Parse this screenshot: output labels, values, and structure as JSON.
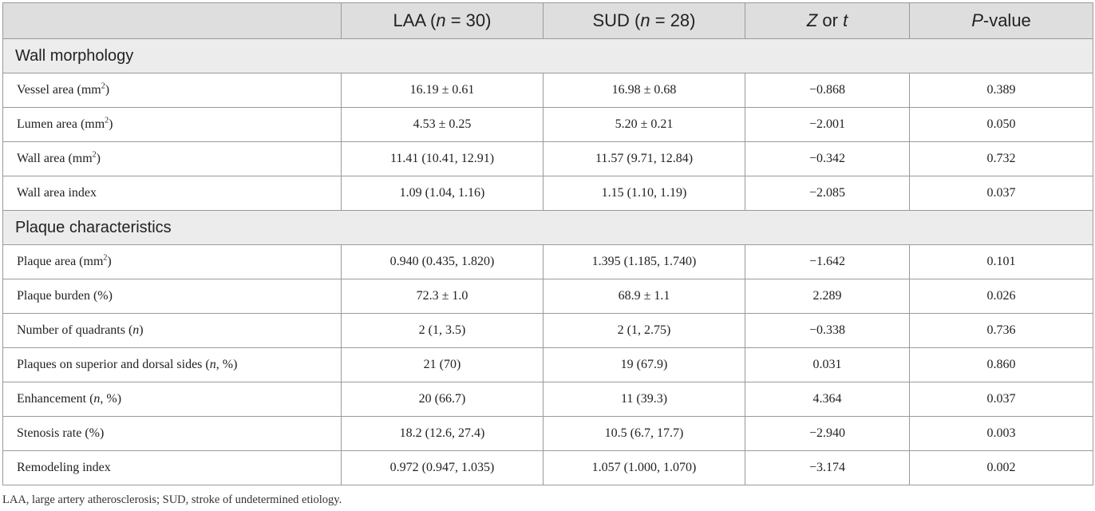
{
  "header": {
    "col1": "",
    "col2_pre": "LAA (",
    "col2_n": "n",
    "col2_post": " = 30)",
    "col3_pre": "SUD (",
    "col3_n": "n",
    "col3_post": " = 28)",
    "col4_z": "Z",
    "col4_or": " or ",
    "col4_t": "t",
    "col5_p": "P",
    "col5_rest": "-value"
  },
  "sections": [
    {
      "title": "Wall morphology",
      "rows": [
        {
          "label": "Vessel area (mm",
          "sup": "2",
          "suffix": ")",
          "laa": "16.19 ± 0.61",
          "sud": "16.98 ± 0.68",
          "z": "−0.868",
          "p": "0.389"
        },
        {
          "label": "Lumen area (mm",
          "sup": "2",
          "suffix": ")",
          "laa": "4.53 ± 0.25",
          "sud": "5.20 ± 0.21",
          "z": "−2.001",
          "p": "0.050"
        },
        {
          "label": "Wall area (mm",
          "sup": "2",
          "suffix": ")",
          "laa": "11.41 (10.41, 12.91)",
          "sud": "11.57 (9.71, 12.84)",
          "z": "−0.342",
          "p": "0.732"
        },
        {
          "label": "Wall area index",
          "laa": "1.09 (1.04, 1.16)",
          "sud": "1.15 (1.10, 1.19)",
          "z": "−2.085",
          "p": "0.037"
        }
      ]
    },
    {
      "title": "Plaque characteristics",
      "rows": [
        {
          "label": "Plaque area (mm",
          "sup": "2",
          "suffix": ")",
          "laa": "0.940 (0.435, 1.820)",
          "sud": "1.395 (1.185, 1.740)",
          "z": "−1.642",
          "p": "0.101"
        },
        {
          "label": "Plaque burden (%)",
          "laa": "72.3 ± 1.0",
          "sud": "68.9 ± 1.1",
          "z": "2.289",
          "p": "0.026"
        },
        {
          "label": "Number of quadrants (",
          "ital": "n",
          "suffix": ")",
          "laa": "2 (1, 3.5)",
          "sud": "2 (1, 2.75)",
          "z": "−0.338",
          "p": "0.736"
        },
        {
          "label": "Plaques on superior and dorsal sides (",
          "ital": "n",
          "suffix": ", %)",
          "laa": "21 (70)",
          "sud": "19 (67.9)",
          "z": "0.031",
          "p": "0.860"
        },
        {
          "label": "Enhancement (",
          "ital": "n",
          "suffix": ", %)",
          "laa": "20 (66.7)",
          "sud": "11 (39.3)",
          "z": "4.364",
          "p": "0.037"
        },
        {
          "label": "Stenosis rate (%)",
          "laa": "18.2 (12.6, 27.4)",
          "sud": "10.5 (6.7, 17.7)",
          "z": "−2.940",
          "p": "0.003"
        },
        {
          "label": "Remodeling index",
          "laa": "0.972 (0.947, 1.035)",
          "sud": "1.057 (1.000, 1.070)",
          "z": "−3.174",
          "p": "0.002"
        }
      ]
    }
  ],
  "footnote": "LAA, large artery atherosclerosis; SUD, stroke of undetermined etiology."
}
